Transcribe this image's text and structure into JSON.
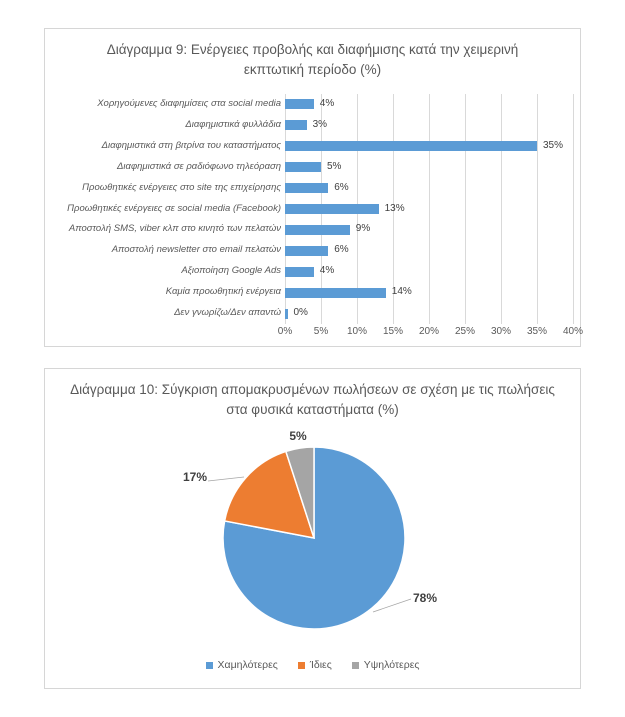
{
  "colors": {
    "bar_blue": "#5b9bd5",
    "pie_blue": "#5b9bd5",
    "pie_orange": "#ed7d31",
    "pie_gray": "#a5a5a5",
    "gridline": "#d9d9d9",
    "text_gray": "#595959",
    "label_dark": "#404040"
  },
  "chart_data": [
    {
      "type": "bar",
      "orientation": "horizontal",
      "title": "Διάγραμμα 9: Ενέργειες προβολής και διαφήμισης κατά την χειμερινή εκπτωτική περίοδο (%)",
      "categories": [
        "Χορηγούμενες διαφημίσεις στα social media",
        "Διαφημιστικά φυλλάδια",
        "Διαφημιστικά στη βιτρίνα του καταστήματος",
        "Διαφημιστικά σε ραδιόφωνο τηλεόραση",
        "Προωθητικές ενέργειες στο site της επιχείρησης",
        "Προωθητικές ενέργειες σε social media (Facebook)",
        "Αποστολή SMS, viber κλπ στο κινητό των πελατών",
        "Αποστολή newsletter στο email πελατών",
        "Αξιοποίηση Google Ads",
        "Καμία προωθητική ενέργεια",
        "Δεν γνωρίζω/Δεν απαντώ"
      ],
      "values": [
        4,
        3,
        35,
        5,
        6,
        13,
        9,
        6,
        4,
        14,
        0
      ],
      "value_labels": [
        "4%",
        "3%",
        "35%",
        "5%",
        "6%",
        "13%",
        "9%",
        "6%",
        "4%",
        "14%",
        "0%"
      ],
      "xlabel": "",
      "ylabel": "",
      "xlim": [
        0,
        40
      ],
      "x_tick_step": 5,
      "x_ticks": [
        "0%",
        "5%",
        "10%",
        "15%",
        "20%",
        "25%",
        "30%",
        "35%",
        "40%"
      ],
      "grid": true,
      "bar_color": "#5b9bd5",
      "legend": false
    },
    {
      "type": "pie",
      "title": "Διάγραμμα 10: Σύγκριση απομακρυσμένων πωλήσεων σε σχέση με τις πωλήσεις στα φυσικά καταστήματα (%)",
      "labels": [
        "Χαμηλότερες",
        "Ίδιες",
        "Υψηλότερες"
      ],
      "values": [
        78,
        17,
        5
      ],
      "value_labels": [
        "78%",
        "17%",
        "5%"
      ],
      "colors": [
        "#5b9bd5",
        "#ed7d31",
        "#a5a5a5"
      ],
      "start_angle_deg": 0,
      "direction": "clockwise",
      "legend_position": "bottom"
    }
  ]
}
